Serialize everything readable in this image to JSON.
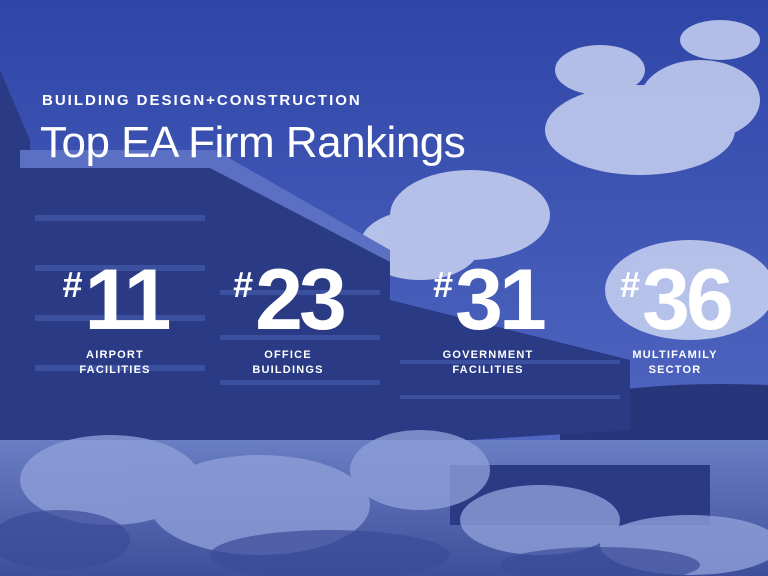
{
  "header": {
    "publication": "BUILDING DESIGN+CONSTRUCTION",
    "title": "Top EA Firm Rankings"
  },
  "rankings": [
    {
      "symbol": "#",
      "value": "11",
      "label_line1": "AIRPORT",
      "label_line2": "FACILITIES"
    },
    {
      "symbol": "#",
      "value": "23",
      "label_line1": "OFFICE",
      "label_line2": "BUILDINGS"
    },
    {
      "symbol": "#",
      "value": "31",
      "label_line1": "GOVERNMENT",
      "label_line2": "FACILITIES"
    },
    {
      "symbol": "#",
      "value": "36",
      "label_line1": "MULTIFAMILY",
      "label_line2": "SECTOR"
    }
  ],
  "colors": {
    "sky": "#3b55b8",
    "building": "#2b3c86",
    "text": "#ffffff"
  }
}
